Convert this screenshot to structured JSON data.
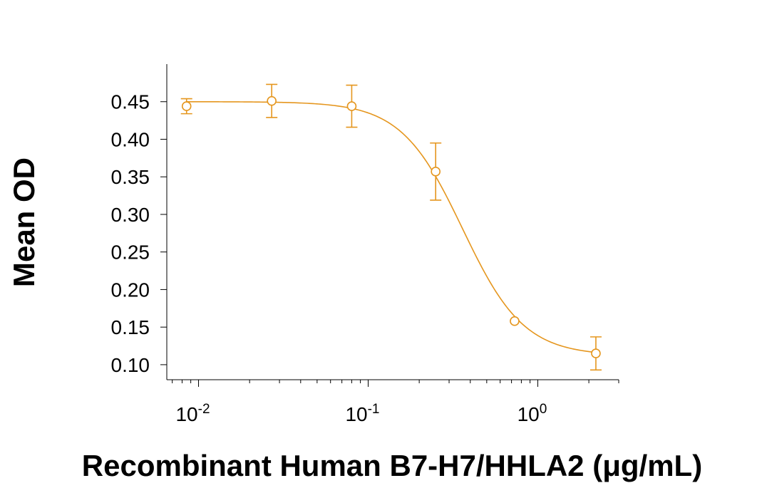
{
  "chart_data": {
    "type": "scatter",
    "title": "",
    "xlabel": "Recombinant Human B7-H7/HHLA2 (μg/mL)",
    "ylabel": "Mean OD",
    "x_scale": "log",
    "xlim": [
      0.0065,
      3.0
    ],
    "ylim": [
      0.08,
      0.5
    ],
    "x_ticks": [
      {
        "base": "10",
        "exp": "-2",
        "value": 0.01
      },
      {
        "base": "10",
        "exp": "-1",
        "value": 0.1
      },
      {
        "base": "10",
        "exp": "0",
        "value": 1
      }
    ],
    "y_ticks": [
      "0.10",
      "0.15",
      "0.20",
      "0.25",
      "0.30",
      "0.35",
      "0.40",
      "0.45"
    ],
    "grid": false,
    "color": "#E5961E",
    "series": [
      {
        "points": [
          {
            "x": 0.0085,
            "y": 0.444,
            "err": 0.01
          },
          {
            "x": 0.027,
            "y": 0.451,
            "err": 0.022
          },
          {
            "x": 0.08,
            "y": 0.444,
            "err": 0.028
          },
          {
            "x": 0.25,
            "y": 0.357,
            "err": 0.038
          },
          {
            "x": 0.73,
            "y": 0.158,
            "err": 0.0
          },
          {
            "x": 2.2,
            "y": 0.115,
            "err": 0.022
          }
        ],
        "fit": {
          "model": "4PL",
          "top": 0.45,
          "bottom": 0.112,
          "ec50": 0.36,
          "hill": 2.4
        }
      }
    ]
  }
}
